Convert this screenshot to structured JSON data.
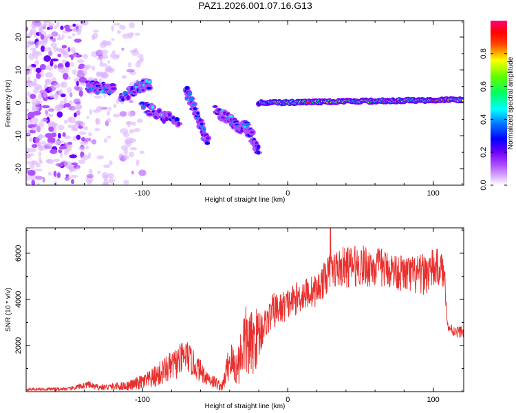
{
  "title": "PAZ1.2026.001.07.16.G13",
  "chart_data": [
    {
      "type": "heatmap",
      "xlabel": "Height of straight line (km)",
      "ylabel": "Frequency (Hz)",
      "xlim": [
        -180,
        121
      ],
      "ylim": [
        -25,
        25
      ],
      "xticks": [
        -100,
        0,
        100
      ],
      "xtick_labels": [
        "-100",
        "0",
        "100"
      ],
      "yticks": [
        -20,
        -10,
        0,
        10,
        20
      ],
      "ytick_labels": [
        "-20",
        "-10",
        "0",
        "10",
        "20"
      ],
      "colorbar": {
        "label": "Normalized spectral amplitude",
        "range": [
          0,
          1
        ],
        "ticks": [
          0.0,
          0.2,
          0.4,
          0.6,
          0.8
        ],
        "tick_labels": [
          "0.0",
          "0.2",
          "0.4",
          "0.6",
          "0.8"
        ],
        "colors": [
          "#ffffff",
          "#c864ff",
          "#7d00ff",
          "#0000ff",
          "#00ffff",
          "#00ff00",
          "#ffff00",
          "#ff0000",
          "#ff0080"
        ]
      },
      "description_points": {
        "noise_region_x": [
          -180,
          -100
        ],
        "signal_start_x": -138,
        "steady_line_start_x": -20,
        "steady_line_frequency": 1,
        "branch_segments": [
          {
            "x": [
              -138,
              -120
            ],
            "freq": [
              5,
              4
            ]
          },
          {
            "x": [
              -115,
              -95
            ],
            "freq": [
              2,
              6
            ]
          },
          {
            "x": [
              -100,
              -75
            ],
            "freq": [
              -1,
              -6
            ]
          },
          {
            "x": [
              -70,
              -55
            ],
            "freq": [
              4,
              -12
            ]
          },
          {
            "x": [
              -50,
              -30
            ],
            "freq": [
              -2,
              -8
            ]
          },
          {
            "x": [
              -30,
              -20
            ],
            "freq": [
              -6,
              -14
            ]
          },
          {
            "x": [
              -20,
              121
            ],
            "freq": [
              0,
              1
            ]
          }
        ]
      }
    },
    {
      "type": "line",
      "xlabel": "Height of straight line (km)",
      "ylabel": "SNR (10 * v/v)",
      "xlim": [
        -180,
        121
      ],
      "ylim": [
        0,
        7100
      ],
      "xticks": [
        -100,
        0,
        100
      ],
      "xtick_labels": [
        "-100",
        "0",
        "100"
      ],
      "yticks": [
        2000,
        4000,
        6000
      ],
      "ytick_labels": [
        "2000",
        "4000",
        "6000"
      ],
      "series": [
        {
          "name": "SNR",
          "color": "#e8302e",
          "envelope_x": [
            -180,
            -150,
            -138,
            -130,
            -110,
            -95,
            -85,
            -75,
            -70,
            -65,
            -55,
            -45,
            -40,
            -35,
            -30,
            -25,
            -20,
            -15,
            -10,
            -5,
            0,
            10,
            20,
            30,
            40,
            50,
            60,
            70,
            80,
            90,
            100,
            105,
            108,
            110,
            115,
            121
          ],
          "envelope_mean": [
            100,
            120,
            300,
            180,
            250,
            500,
            900,
            1300,
            1600,
            1200,
            600,
            200,
            1400,
            1000,
            2200,
            2000,
            2500,
            3000,
            3500,
            3600,
            3800,
            4200,
            4400,
            5300,
            5400,
            5450,
            5400,
            5300,
            5100,
            5000,
            5300,
            5400,
            4900,
            2800,
            2600,
            2600
          ],
          "envelope_amp": [
            60,
            80,
            150,
            120,
            200,
            400,
            600,
            700,
            700,
            600,
            350,
            200,
            900,
            800,
            1600,
            1500,
            1200,
            600,
            800,
            700,
            700,
            700,
            700,
            800,
            900,
            900,
            900,
            800,
            800,
            900,
            900,
            800,
            600,
            250,
            250,
            250
          ]
        }
      ]
    }
  ]
}
